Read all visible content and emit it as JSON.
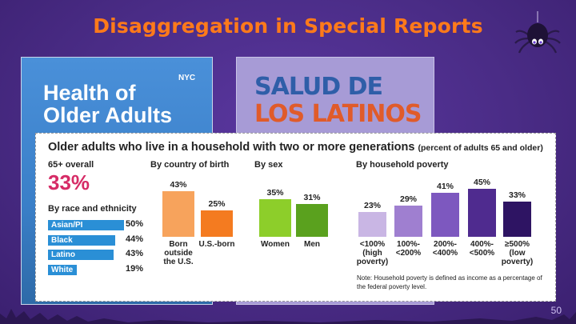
{
  "slide_title": "Disaggregation in Special Reports",
  "page_number": "50",
  "cover_left": {
    "title_line1": "Health of",
    "title_line2": "Older Adults",
    "logo": "NYC"
  },
  "cover_right": {
    "title_line1": "SALUD DE",
    "title_line2": "LOS LATINOS"
  },
  "panel": {
    "title": "Older adults who live in a household with two or more generations",
    "subtitle": "(percent of adults 65 and older)",
    "overall_label": "65+ overall",
    "overall_value": "33%",
    "race_header": "By race and ethnicity",
    "birth_header": "By country of birth",
    "sex_header": "By sex",
    "poverty_header": "By household poverty",
    "note": "Note: Household poverty is defined as income as a percentage of the federal poverty level."
  },
  "chart_data": {
    "type": "bar",
    "groups": [
      {
        "name": "By race and ethnicity",
        "categories": [
          "Asian/PI",
          "Black",
          "Latino",
          "White"
        ],
        "values": [
          50,
          44,
          43,
          19
        ],
        "labels": [
          "50%",
          "44%",
          "43%",
          "19%"
        ]
      },
      {
        "name": "By country of birth",
        "categories": [
          "Born outside the U.S.",
          "U.S.-born"
        ],
        "values": [
          43,
          25
        ],
        "labels": [
          "43%",
          "25%"
        ]
      },
      {
        "name": "By sex",
        "categories": [
          "Women",
          "Men"
        ],
        "values": [
          35,
          31
        ],
        "labels": [
          "35%",
          "31%"
        ]
      },
      {
        "name": "By household poverty",
        "categories": [
          "<100% (high poverty)",
          "100%-<200%",
          "200%-<400%",
          "400%-<500%",
          "≥500% (low poverty)"
        ],
        "values": [
          23,
          29,
          41,
          45,
          33
        ],
        "labels": [
          "23%",
          "29%",
          "41%",
          "45%",
          "33%"
        ]
      }
    ]
  },
  "colors": {
    "race_bar": "#2a8fd6",
    "birth_1": "#f7a35c",
    "birth_2": "#f47b20",
    "sex_1": "#8dce2a",
    "sex_2": "#5aa11e",
    "pov": [
      "#c9b6e4",
      "#9f7fd0",
      "#7d58bf",
      "#4f2b8f",
      "#2e1463"
    ],
    "accent": "#d62b66"
  }
}
